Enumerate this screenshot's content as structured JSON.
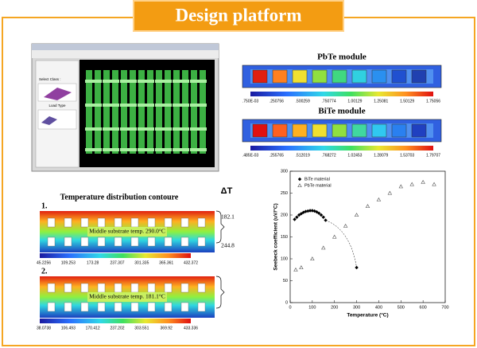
{
  "header": {
    "title": "Design platform"
  },
  "software": {
    "labels": [
      "Select Class :",
      "Load Type"
    ]
  },
  "modules": [
    {
      "title": "PbTe module",
      "scale": [
        ".750E-03",
        ".250756",
        ".500259",
        ".750774",
        "1.00129",
        "1.25081",
        "1.50129",
        "1.75056"
      ]
    },
    {
      "title": "BiTe module",
      "scale": [
        ".485E-03",
        ".255765",
        ".512019",
        ".768272",
        "1.02453",
        "1.28079",
        "1.53703",
        "1.79707"
      ]
    }
  ],
  "contour": {
    "title": "Temperature distribution contoure",
    "delta": "ΔT",
    "cases": [
      {
        "number": "1.",
        "note": "Middle substrate temp. 290.0°C",
        "levels": [
          "182.1",
          "244.8"
        ],
        "scale": [
          "45.2256",
          "109.253",
          "173.28",
          "237.307",
          "301.335",
          "365.361",
          "432.372"
        ]
      },
      {
        "number": "2.",
        "note": "Middle substrate temp. 181.1°C",
        "scale": [
          "38.0738",
          "106.493",
          "170.412",
          "237.202",
          "303.551",
          "369.92",
          "433.336"
        ]
      }
    ]
  },
  "chart_data": {
    "type": "scatter",
    "xlabel": "Temperature (°C)",
    "ylabel": "Seebeck coefficient (uV/°C)",
    "xlim": [
      0,
      700
    ],
    "ylim": [
      0,
      300
    ],
    "xticks": [
      0,
      100,
      200,
      300,
      400,
      500,
      600,
      700
    ],
    "yticks": [
      0,
      50,
      100,
      150,
      200,
      250,
      300
    ],
    "legend": "upper left",
    "series": [
      {
        "name": "BiTe material",
        "marker": "diamond",
        "color": "#000000",
        "x": [
          20,
          30,
          40,
          50,
          60,
          70,
          80,
          90,
          100,
          110,
          120,
          130,
          140,
          150,
          160,
          300
        ],
        "values": [
          190,
          195,
          200,
          203,
          206,
          208,
          209,
          210,
          210,
          209,
          207,
          204,
          200,
          195,
          188,
          80
        ]
      },
      {
        "name": "PbTe material",
        "marker": "triangle",
        "color": "#555555",
        "x": [
          25,
          50,
          100,
          150,
          200,
          250,
          300,
          350,
          400,
          450,
          500,
          550,
          600,
          650
        ],
        "values": [
          75,
          80,
          100,
          125,
          150,
          175,
          200,
          220,
          235,
          250,
          265,
          270,
          275,
          270
        ]
      }
    ]
  }
}
